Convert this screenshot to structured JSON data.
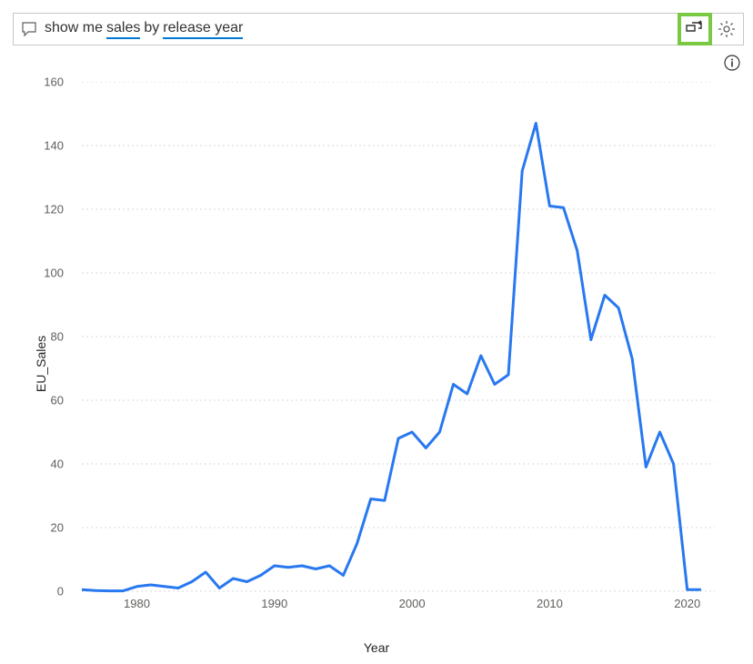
{
  "query": {
    "prefix": "show me",
    "token1": "sales",
    "mid": "by",
    "token2": "release year"
  },
  "chart": {
    "type": "line",
    "x_label": "Year",
    "y_label": "EU_Sales",
    "line_color": "#2878f0",
    "line_width": 3,
    "grid_color": "#d8d8d8",
    "background_color": "#ffffff",
    "xlim": [
      1976,
      2022
    ],
    "ylim": [
      0,
      160
    ],
    "x_ticks": [
      1980,
      1990,
      2000,
      2010,
      2020
    ],
    "y_ticks": [
      0,
      20,
      40,
      60,
      80,
      100,
      120,
      140,
      160
    ],
    "x_axis_fontsize": 13,
    "y_axis_fontsize": 13,
    "title_fontsize": 14,
    "data": [
      {
        "x": 1976,
        "y": 0.5
      },
      {
        "x": 1977,
        "y": 0.2
      },
      {
        "x": 1978,
        "y": 0.1
      },
      {
        "x": 1979,
        "y": 0.1
      },
      {
        "x": 1980,
        "y": 1.5
      },
      {
        "x": 1981,
        "y": 2.0
      },
      {
        "x": 1982,
        "y": 1.5
      },
      {
        "x": 1983,
        "y": 1.0
      },
      {
        "x": 1984,
        "y": 3.0
      },
      {
        "x": 1985,
        "y": 6.0
      },
      {
        "x": 1986,
        "y": 1.0
      },
      {
        "x": 1987,
        "y": 4.0
      },
      {
        "x": 1988,
        "y": 3.0
      },
      {
        "x": 1989,
        "y": 5.0
      },
      {
        "x": 1990,
        "y": 8.0
      },
      {
        "x": 1991,
        "y": 7.5
      },
      {
        "x": 1992,
        "y": 8.0
      },
      {
        "x": 1993,
        "y": 7.0
      },
      {
        "x": 1994,
        "y": 8.0
      },
      {
        "x": 1995,
        "y": 5.0
      },
      {
        "x": 1996,
        "y": 15.0
      },
      {
        "x": 1997,
        "y": 29.0
      },
      {
        "x": 1998,
        "y": 28.5
      },
      {
        "x": 1999,
        "y": 48.0
      },
      {
        "x": 2000,
        "y": 50.0
      },
      {
        "x": 2001,
        "y": 45.0
      },
      {
        "x": 2002,
        "y": 50.0
      },
      {
        "x": 2003,
        "y": 65.0
      },
      {
        "x": 2004,
        "y": 62.0
      },
      {
        "x": 2005,
        "y": 74.0
      },
      {
        "x": 2006,
        "y": 65.0
      },
      {
        "x": 2007,
        "y": 68.0
      },
      {
        "x": 2008,
        "y": 132.0
      },
      {
        "x": 2009,
        "y": 147.0
      },
      {
        "x": 2010,
        "y": 121.0
      },
      {
        "x": 2011,
        "y": 120.5
      },
      {
        "x": 2012,
        "y": 107.0
      },
      {
        "x": 2013,
        "y": 79.0
      },
      {
        "x": 2014,
        "y": 93.0
      },
      {
        "x": 2015,
        "y": 89.0
      },
      {
        "x": 2016,
        "y": 73.0
      },
      {
        "x": 2017,
        "y": 39.0
      },
      {
        "x": 2018,
        "y": 50.0
      },
      {
        "x": 2019,
        "y": 40.0
      },
      {
        "x": 2020,
        "y": 0.5
      },
      {
        "x": 2021,
        "y": 0.5
      }
    ]
  }
}
